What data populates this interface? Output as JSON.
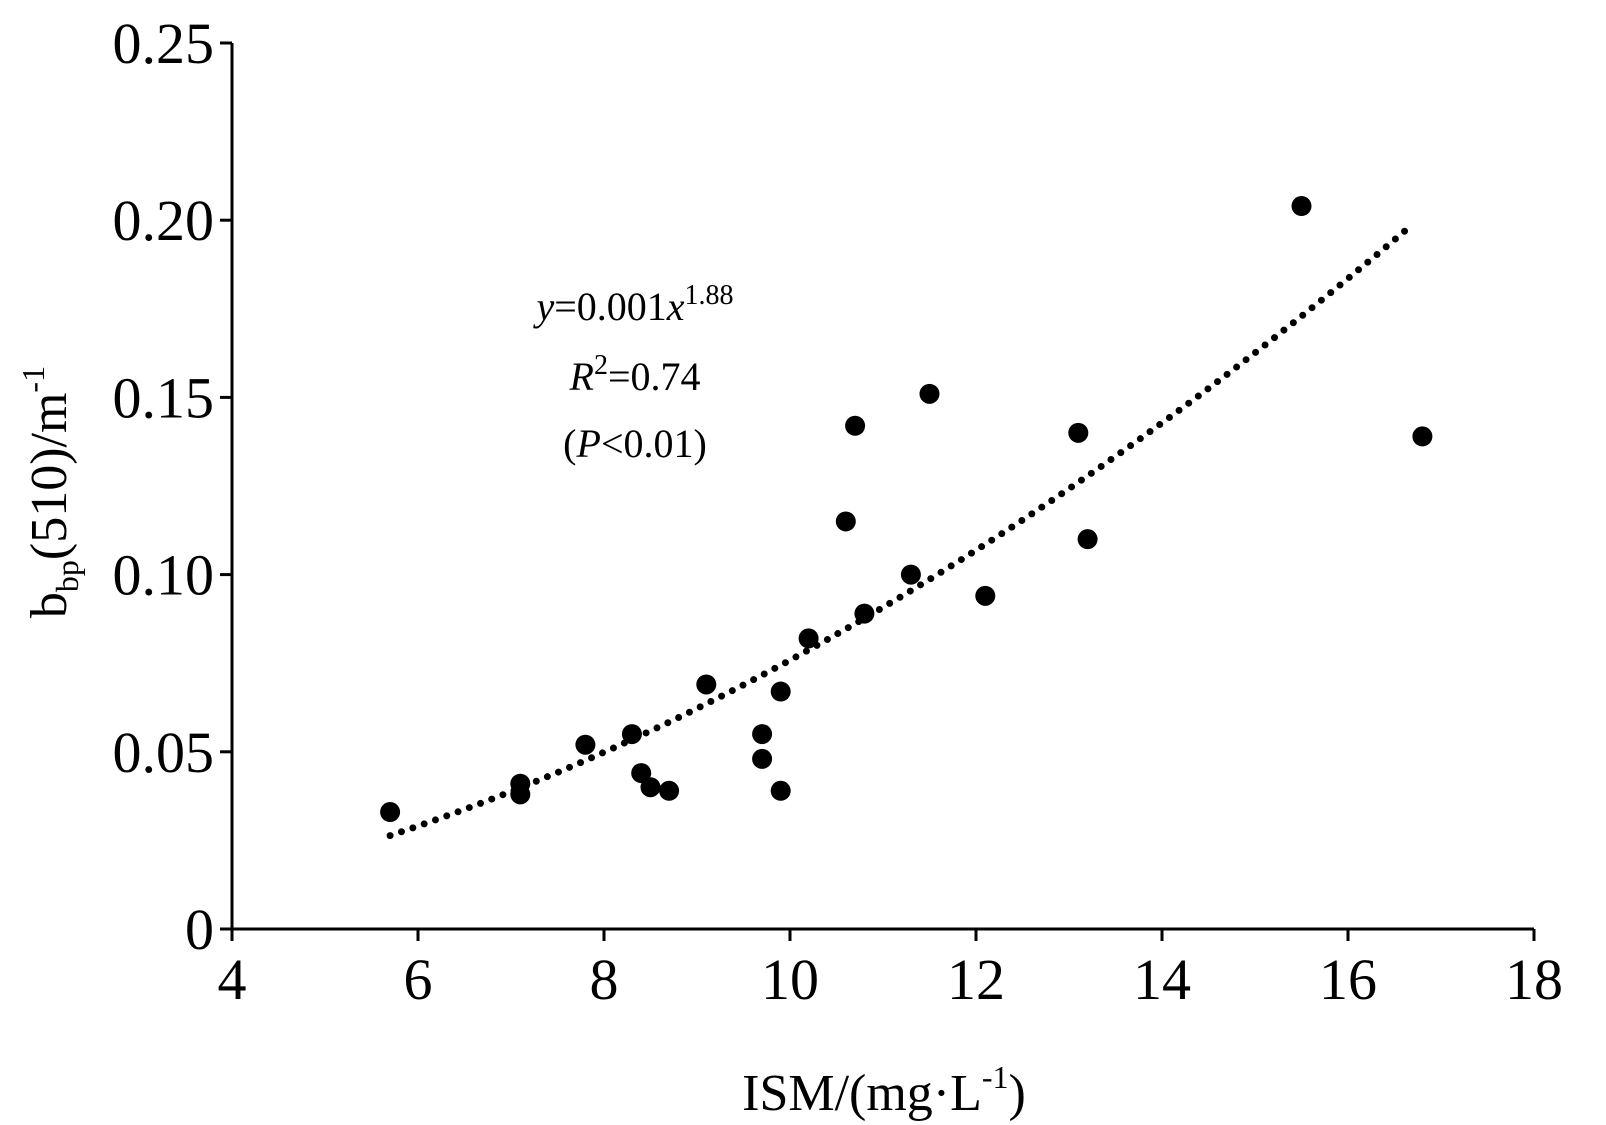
{
  "chart_data": {
    "type": "scatter",
    "xlim": [
      4,
      18
    ],
    "ylim": [
      0,
      0.25
    ],
    "x_ticks": [
      "4",
      "6",
      "8",
      "10",
      "12",
      "14",
      "16",
      "18"
    ],
    "y_ticks": [
      "0",
      "0.05",
      "0.10",
      "0.15",
      "0.20",
      "0.25"
    ],
    "xlabel": {
      "main": "ISM/(mg·L",
      "sup": "-1",
      "close": ")"
    },
    "ylabel": {
      "b": "b",
      "sub": "bp",
      "mid": "(510)/m",
      "sup": "-1"
    },
    "grid": false,
    "points": [
      [
        5.7,
        0.033
      ],
      [
        7.1,
        0.038
      ],
      [
        7.1,
        0.041
      ],
      [
        7.8,
        0.052
      ],
      [
        8.3,
        0.055
      ],
      [
        8.4,
        0.044
      ],
      [
        8.5,
        0.04
      ],
      [
        8.7,
        0.039
      ],
      [
        9.1,
        0.069
      ],
      [
        9.7,
        0.048
      ],
      [
        9.7,
        0.055
      ],
      [
        9.9,
        0.039
      ],
      [
        9.9,
        0.067
      ],
      [
        10.2,
        0.082
      ],
      [
        10.6,
        0.115
      ],
      [
        10.7,
        0.142
      ],
      [
        10.8,
        0.089
      ],
      [
        11.3,
        0.1
      ],
      [
        11.5,
        0.151
      ],
      [
        12.1,
        0.094
      ],
      [
        13.1,
        0.14
      ],
      [
        13.2,
        0.11
      ],
      [
        15.5,
        0.204
      ],
      [
        16.8,
        0.139
      ]
    ],
    "fit": {
      "coef": 0.001,
      "exponent": 1.88,
      "x_range": [
        5.7,
        16.7
      ],
      "style": "dotted"
    },
    "annotation": {
      "line1": {
        "y": "y",
        "eq": "=0.001",
        "x": "x",
        "exp": "1.88"
      },
      "line2": {
        "r": "R",
        "sup": "2",
        "rest": "=0.74"
      },
      "line3": {
        "open": "(",
        "p": "P",
        "rest": "<0.01)"
      }
    }
  }
}
